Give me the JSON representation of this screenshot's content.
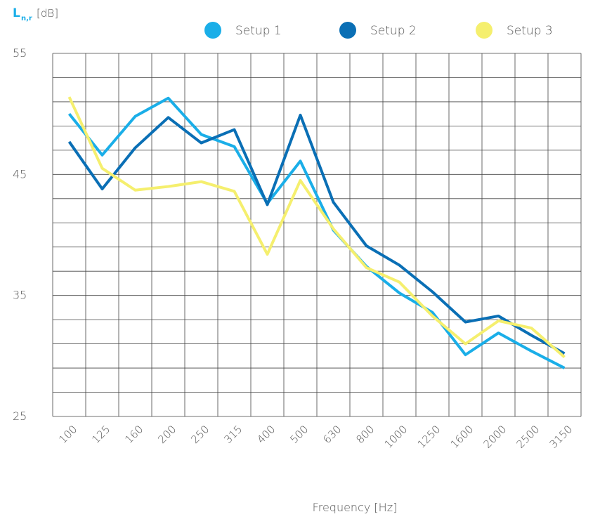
{
  "chart_data": {
    "type": "line",
    "y_label": "L",
    "y_label_sub": "n,r",
    "y_unit": "[dB]",
    "x_label": "Frequency [Hz]",
    "categories": [
      "100",
      "125",
      "160",
      "200",
      "250",
      "315",
      "400",
      "500",
      "630",
      "800",
      "1000",
      "1250",
      "1600",
      "2000",
      "2500",
      "3150"
    ],
    "series": [
      {
        "name": "Setup 1",
        "color": "#1aaee8",
        "values": [
          50.0,
          46.6,
          49.8,
          51.3,
          48.3,
          47.3,
          42.6,
          46.1,
          40.4,
          37.4,
          35.2,
          33.6,
          30.1,
          31.9,
          30.4,
          29.0
        ]
      },
      {
        "name": "Setup 2",
        "color": "#0a6fb5",
        "values": [
          47.7,
          43.8,
          47.2,
          49.7,
          47.6,
          48.7,
          42.5,
          49.9,
          42.7,
          39.1,
          37.5,
          35.3,
          32.8,
          33.3,
          31.7,
          30.2
        ]
      },
      {
        "name": "Setup 3",
        "color": "#f5ef6e",
        "values": [
          51.4,
          45.5,
          43.7,
          44.0,
          44.4,
          43.6,
          38.4,
          44.5,
          40.5,
          37.3,
          36.1,
          33.3,
          31.0,
          32.9,
          32.3,
          29.9
        ]
      }
    ],
    "ylim": [
      25,
      55
    ],
    "yticks": [
      25,
      35,
      45,
      55
    ],
    "ygrid": [
      25,
      27,
      29,
      31,
      33,
      35,
      37,
      39,
      41,
      43,
      45,
      47,
      49,
      51,
      53,
      55
    ],
    "grid": true
  }
}
